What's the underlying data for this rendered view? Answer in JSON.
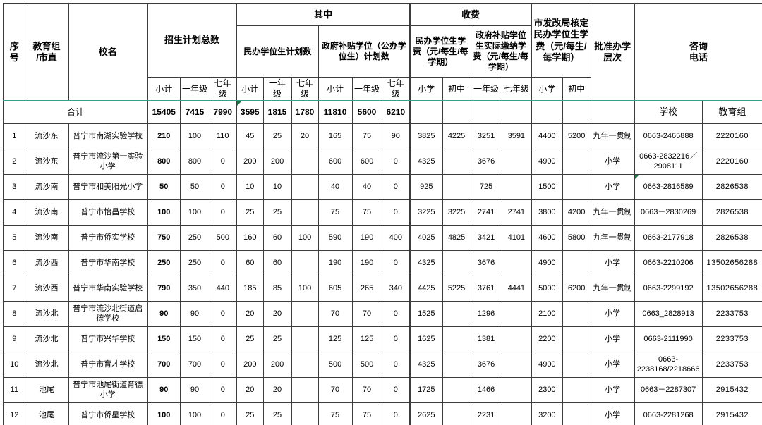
{
  "table": {
    "header": {
      "col_no": "序号",
      "col_group": "教育组\n/市直",
      "col_school": "校名",
      "plan_total": "招生计划总数",
      "among": "其中",
      "private_plan": "民办学位生计划数",
      "gov_plan": "政府补贴学位（公办学位生）计划数",
      "fees": "收费",
      "private_fee": "民办学位生学费（元/每生/每学期）",
      "gov_fee": "政府补贴学位生实际缴纳学费（元/每生/每学期）",
      "ndrc_fee": "市发改局核定民办学位生学费（元/每生/每学期）",
      "level": "批准办学\n层次",
      "phone": "咨询\n电话",
      "sub": {
        "subtotal": "小计",
        "grade1": "一年级",
        "grade7": "七年级",
        "primary": "小学",
        "junior": "初中"
      }
    },
    "total_row": {
      "label": "合计",
      "values": [
        "15405",
        "7415",
        "7990",
        "3595",
        "1815",
        "1780",
        "11810",
        "5600",
        "6210"
      ],
      "phone_school_label": "学校",
      "phone_group_label": "教育组"
    },
    "rows": [
      {
        "no": "1",
        "group": "流沙东",
        "school": "普宁市南湖实验学校",
        "cells": [
          "210",
          "100",
          "110",
          "45",
          "25",
          "20",
          "165",
          "75",
          "90",
          "3825",
          "4225",
          "3251",
          "3591",
          "4400",
          "5200"
        ],
        "level": "九年一贯制",
        "phone_school": "0663-2465888",
        "phone_group": "2220160"
      },
      {
        "no": "2",
        "group": "流沙东",
        "school": "普宁市流沙第一实验小学",
        "cells": [
          "800",
          "800",
          "0",
          "200",
          "200",
          "",
          "600",
          "600",
          "0",
          "4325",
          "",
          "3676",
          "",
          "4900",
          ""
        ],
        "level": "小学",
        "phone_school": "0663-2832216／\n2908111",
        "phone_group": "2220160"
      },
      {
        "no": "3",
        "group": "流沙南",
        "school": "普宁市和美阳光小学",
        "cells": [
          "50",
          "50",
          "0",
          "10",
          "10",
          "",
          "40",
          "40",
          "0",
          "925",
          "",
          "725",
          "",
          "1500",
          ""
        ],
        "level": "小学",
        "phone_school": "0663-2816589",
        "phone_group": "2826538",
        "phone_flag": true,
        "phone_top": true
      },
      {
        "no": "4",
        "group": "流沙南",
        "school": "普宁市怡昌学校",
        "cells": [
          "100",
          "100",
          "0",
          "25",
          "25",
          "",
          "75",
          "75",
          "0",
          "3225",
          "3225",
          "2741",
          "2741",
          "3800",
          "4200"
        ],
        "level": "九年一贯制",
        "phone_school": "0663－2830269",
        "phone_group": "2826538"
      },
      {
        "no": "5",
        "group": "流沙南",
        "school": "普宁市侨实学校",
        "cells": [
          "750",
          "250",
          "500",
          "160",
          "60",
          "100",
          "590",
          "190",
          "400",
          "4025",
          "4825",
          "3421",
          "4101",
          "4600",
          "5800"
        ],
        "level": "九年一贯制",
        "phone_school": "0663-2177918",
        "phone_group": "2826538"
      },
      {
        "no": "6",
        "group": "流沙西",
        "school": "普宁市华南学校",
        "cells": [
          "250",
          "250",
          "0",
          "60",
          "60",
          "",
          "190",
          "190",
          "0",
          "4325",
          "",
          "3676",
          "",
          "4900",
          ""
        ],
        "level": "小学",
        "phone_school": "0663-2210206",
        "phone_group": "13502656288"
      },
      {
        "no": "7",
        "group": "流沙西",
        "school": "普宁市华南实验学校",
        "cells": [
          "790",
          "350",
          "440",
          "185",
          "85",
          "100",
          "605",
          "265",
          "340",
          "4425",
          "5225",
          "3761",
          "4441",
          "5000",
          "6200"
        ],
        "level": "九年一贯制",
        "phone_school": "0663-2299192",
        "phone_group": "13502656288"
      },
      {
        "no": "8",
        "group": "流沙北",
        "school": "普宁市流沙北街道启德学校",
        "cells": [
          "90",
          "90",
          "0",
          "20",
          "20",
          "",
          "70",
          "70",
          "0",
          "1525",
          "",
          "1296",
          "",
          "2100",
          ""
        ],
        "level": "小学",
        "phone_school": "0663_2828913",
        "phone_group": "2233753"
      },
      {
        "no": "9",
        "group": "流沙北",
        "school": "普宁市兴华学校",
        "cells": [
          "150",
          "150",
          "0",
          "25",
          "25",
          "",
          "125",
          "125",
          "0",
          "1625",
          "",
          "1381",
          "",
          "2200",
          ""
        ],
        "level": "小学",
        "phone_school": "0663-2111990",
        "phone_group": "2233753"
      },
      {
        "no": "10",
        "group": "流沙北",
        "school": "普宁市育才学校",
        "cells": [
          "700",
          "700",
          "0",
          "200",
          "200",
          "",
          "500",
          "500",
          "0",
          "4325",
          "",
          "3676",
          "",
          "4900",
          ""
        ],
        "level": "小学",
        "phone_school": "0663-\n2238168/2218666",
        "phone_group": "2233753"
      },
      {
        "no": "11",
        "group": "池尾",
        "school": "普宁市池尾街道育德小学",
        "cells": [
          "90",
          "90",
          "0",
          "20",
          "20",
          "",
          "70",
          "70",
          "0",
          "1725",
          "",
          "1466",
          "",
          "2300",
          ""
        ],
        "level": "小学",
        "phone_school": "0663－2287307",
        "phone_group": "2915432"
      },
      {
        "no": "12",
        "group": "池尾",
        "school": "普宁市侨星学校",
        "cells": [
          "100",
          "100",
          "0",
          "25",
          "25",
          "",
          "75",
          "75",
          "0",
          "2625",
          "",
          "2231",
          "",
          "3200",
          ""
        ],
        "level": "小学",
        "phone_school": "0663-2281268",
        "phone_group": "2915432"
      }
    ]
  },
  "colors": {
    "header_divider_teal": "#35a18b",
    "error_flag_green": "#1e7145",
    "grid_border": "#3c3c3c"
  }
}
